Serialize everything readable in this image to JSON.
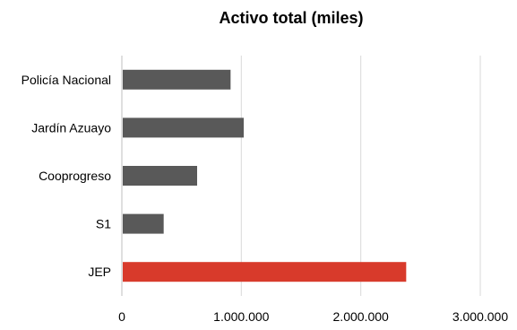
{
  "chart_data": {
    "type": "bar",
    "orientation": "horizontal",
    "title": "Activo total (miles)",
    "xlabel": "",
    "ylabel": "",
    "categories": [
      "Policía Nacional",
      "Jardín Azuayo",
      "Cooprogreso",
      "S1",
      "JEP"
    ],
    "values": [
      910000,
      1020000,
      630000,
      350000,
      2380000
    ],
    "bar_colors": [
      "#595959",
      "#595959",
      "#595959",
      "#595959",
      "#d83a2b"
    ],
    "xlim": [
      0,
      3000000
    ],
    "ticks": [
      0,
      1000000,
      2000000,
      3000000
    ],
    "tick_labels": [
      "0",
      "1.000.000",
      "2.000.000",
      "3.000.000"
    ],
    "grid": true,
    "legend": "none"
  }
}
